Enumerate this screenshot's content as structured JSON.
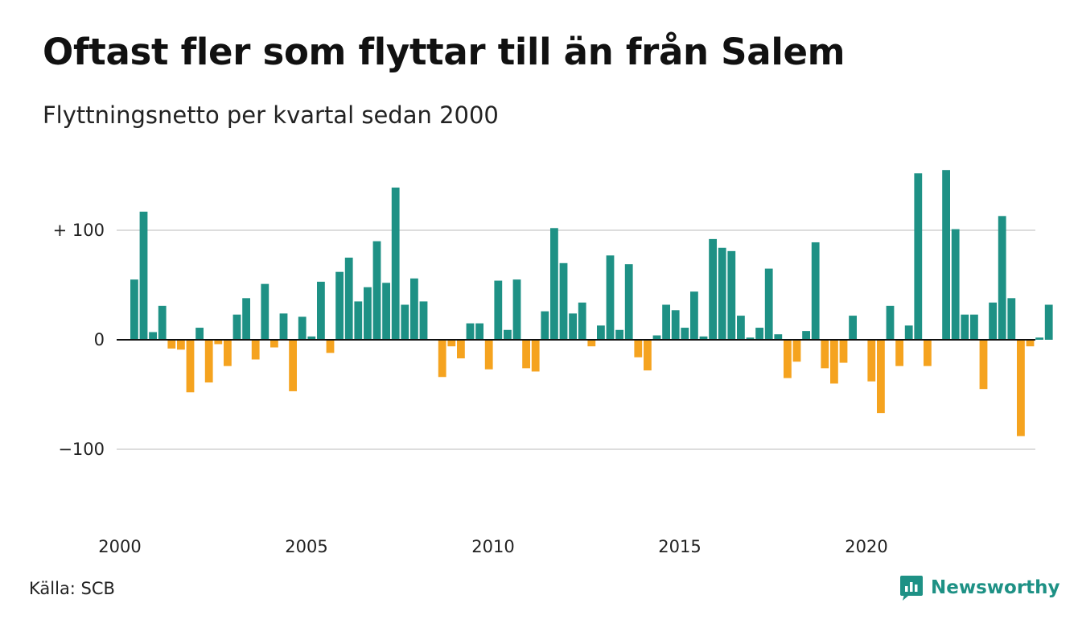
{
  "title": "Oftast fler som flyttar till än från Salem",
  "subtitle": "Flyttningsnetto per kvartal sedan 2000",
  "source": "Källa: SCB",
  "brand": "Newsworthy",
  "colors": {
    "positive": "#1e9185",
    "negative": "#f5a31f",
    "grid": "#dddddd",
    "axis": "#111111"
  },
  "chart_data": {
    "type": "bar",
    "title": "Oftast fler som flyttar till än från Salem",
    "subtitle": "Flyttningsnetto per kvartal sedan 2000",
    "x_start": 2000,
    "x_step": 0.25,
    "xticks": [
      2000,
      2005,
      2010,
      2015,
      2020
    ],
    "yticks": [
      {
        "value": 100,
        "label": "+ 100"
      },
      {
        "value": 0,
        "label": "0"
      },
      {
        "value": -100,
        "label": "−100"
      }
    ],
    "ylim": [
      -170,
      155
    ],
    "grid": true,
    "values": [
      55,
      117,
      7,
      31,
      -8,
      -9,
      -48,
      11,
      -39,
      -4,
      -24,
      23,
      38,
      -18,
      51,
      -7,
      24,
      -47,
      21,
      3,
      53,
      -12,
      62,
      75,
      35,
      48,
      90,
      52,
      139,
      32,
      56,
      35,
      0,
      -34,
      -6,
      -17,
      15,
      15,
      -27,
      54,
      9,
      55,
      -26,
      -29,
      26,
      102,
      70,
      24,
      34,
      -6,
      13,
      77,
      9,
      69,
      -16,
      -28,
      4,
      32,
      27,
      11,
      44,
      3,
      92,
      84,
      81,
      22,
      2,
      11,
      65,
      5,
      -35,
      -20,
      8,
      89,
      -26,
      -40,
      -21,
      22,
      0,
      -38,
      -67,
      31,
      -24,
      13,
      152,
      -24,
      0,
      155,
      101,
      23,
      23,
      -45,
      34,
      113,
      38,
      -88,
      -6,
      2,
      32
    ]
  }
}
